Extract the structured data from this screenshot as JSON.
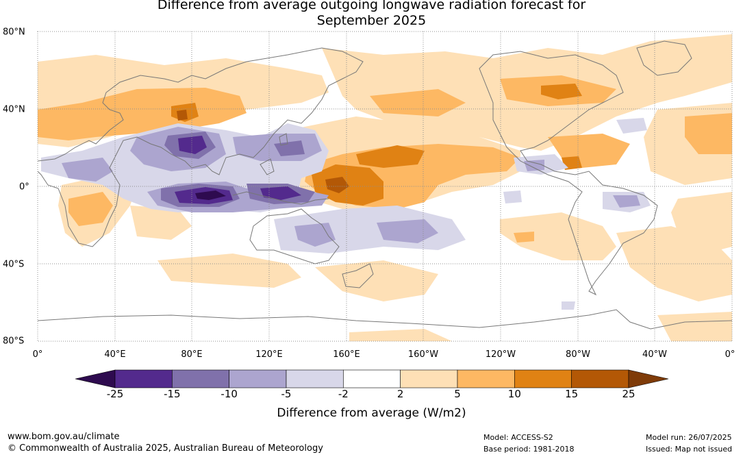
{
  "title_line1": "Difference from average outgoing longwave radiation forecast for",
  "title_line2": "September 2025",
  "lat_labels": [
    "80°N",
    "40°N",
    "0°",
    "40°S",
    "80°S"
  ],
  "lon_labels": [
    "0°",
    "40°E",
    "80°E",
    "120°E",
    "160°E",
    "160°W",
    "120°W",
    "80°W",
    "40°W",
    "0°"
  ],
  "colorbar": {
    "ticks": [
      "-25",
      "-15",
      "-10",
      "-5",
      "-2",
      "2",
      "5",
      "10",
      "15",
      "25"
    ],
    "colors": [
      "#2e0b4f",
      "#532a8d",
      "#8071ab",
      "#aca5cf",
      "#d8d7e9",
      "#ffffff",
      "#fee0b6",
      "#fdb863",
      "#e08214",
      "#b35806",
      "#7f3b08"
    ],
    "title": "Difference from average (W/m2)"
  },
  "footer": {
    "website": "www.bom.gov.au/climate",
    "copyright": "© Commonwealth of Australia 2025, Australian Bureau of Meteorology",
    "model": "Model: ACCESS-S2",
    "base_period": "Base period: 1981-2018",
    "model_run": "Model run: 26/07/2025",
    "issued": "Issued: Map not issued"
  }
}
